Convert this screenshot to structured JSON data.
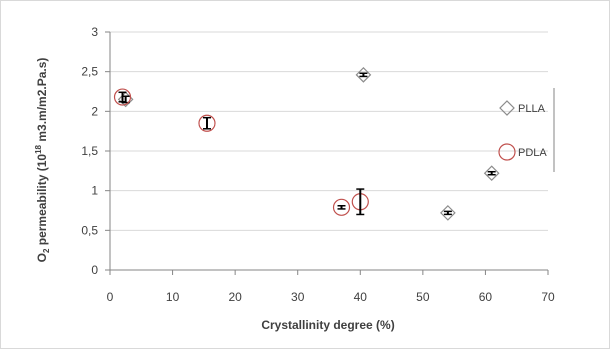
{
  "chart_data": {
    "type": "scatter",
    "title": "",
    "xlabel": "Crystallinity degree (%)",
    "ylabel": {
      "prefix": "O",
      "prefix_sub": "2",
      "middle": " permeability (10",
      "sup": "18",
      "suffix": " m3.m/m2.Pa.s)"
    },
    "xlim": [
      0,
      70
    ],
    "ylim": [
      0,
      3
    ],
    "xticks": [
      0,
      10,
      20,
      30,
      40,
      50,
      60,
      70
    ],
    "yticks": [
      0,
      0.5,
      1,
      1.5,
      2,
      2.5,
      3
    ],
    "xtick_labels": [
      "0",
      "10",
      "20",
      "30",
      "40",
      "50",
      "60",
      "70"
    ],
    "ytick_labels": [
      "0",
      "0,5",
      "1",
      "1,5",
      "2",
      "2,5",
      "3"
    ],
    "grid": "horizontal",
    "legend_position": "right",
    "series": [
      {
        "name": "PLLA",
        "marker": "diamond",
        "color": "#8c8c8c",
        "points": [
          {
            "x": 2.5,
            "y": 2.15,
            "err": 0.04
          },
          {
            "x": 40.5,
            "y": 2.46,
            "err": 0.02
          },
          {
            "x": 54,
            "y": 0.72,
            "err": 0
          },
          {
            "x": 61,
            "y": 1.22,
            "err": 0
          }
        ]
      },
      {
        "name": "PDLA",
        "marker": "circle",
        "color": "#c0504d",
        "points": [
          {
            "x": 2,
            "y": 2.18,
            "err": 0.06
          },
          {
            "x": 15.5,
            "y": 1.85,
            "err": 0.07
          },
          {
            "x": 37,
            "y": 0.79,
            "err": 0.02
          },
          {
            "x": 40,
            "y": 0.86,
            "err": 0.16
          }
        ]
      }
    ]
  }
}
